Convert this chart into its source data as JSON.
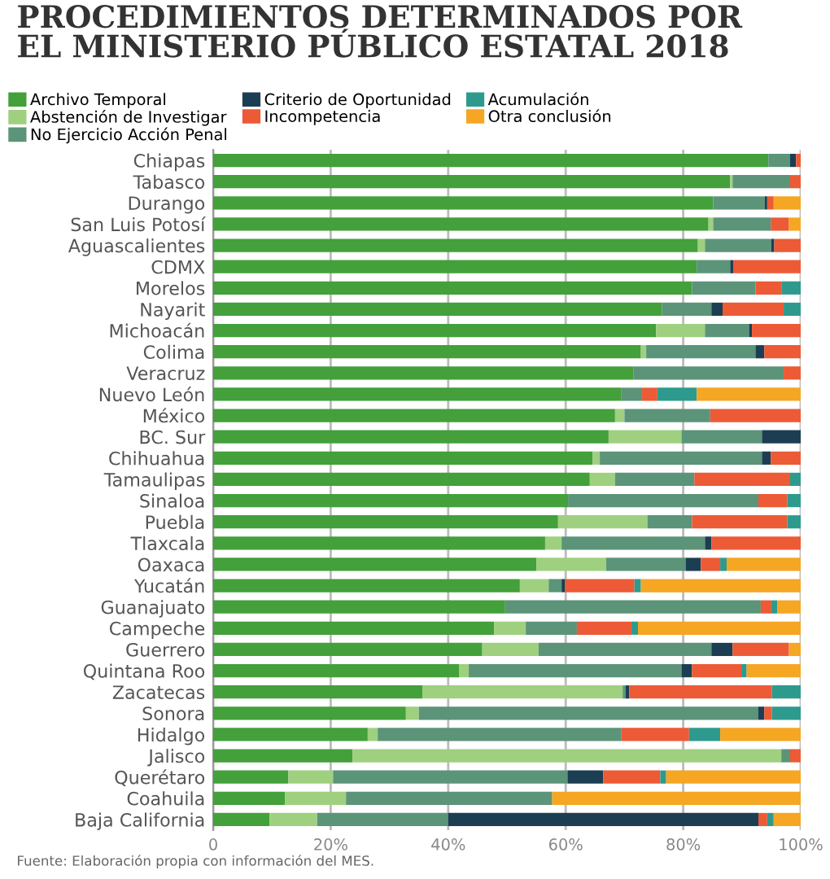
{
  "chart_data": {
    "type": "bar",
    "orientation": "horizontal",
    "stacked": true,
    "title": "PROCEDIMIENTOS DETERMINADOS POR\nEL MINISTERIO PÚBLICO ESTATAL 2018",
    "categories": [
      "Chiapas",
      "Tabasco",
      "Durango",
      "San Luis Potosí",
      "Aguascalientes",
      "CDMX",
      "Morelos",
      "Nayarit",
      "Michoacán",
      "Colima",
      "Veracruz",
      "Nuevo León",
      "México",
      "BC. Sur",
      "Chihuahua",
      "Tamaulipas",
      "Sinaloa",
      "Puebla",
      "Tlaxcala",
      "Oaxaca",
      "Yucatán",
      "Guanajuato",
      "Campeche",
      "Guerrero",
      "Quintana Roo",
      "Zacatecas",
      "Sonora",
      "Hidalgo",
      "Jalisco",
      "Querétaro",
      "Coahuila",
      "Baja California"
    ],
    "series": [
      {
        "name": "Archivo Temporal",
        "color": "#43a03a",
        "values": [
          94.5,
          88.0,
          85.1,
          84.3,
          82.5,
          82.3,
          81.5,
          76.4,
          75.4,
          72.8,
          71.5,
          69.5,
          68.4,
          67.3,
          64.6,
          64.1,
          60.4,
          58.7,
          56.5,
          55.0,
          52.2,
          49.7,
          47.8,
          45.8,
          41.9,
          35.6,
          32.8,
          26.3,
          23.7,
          12.8,
          12.2,
          9.6
        ]
      },
      {
        "name": "Abstención de Investigar",
        "color": "#9fd07f",
        "values": [
          0,
          0.4,
          0,
          0.8,
          1.2,
          0,
          0,
          0,
          8.3,
          0.9,
          0,
          0,
          1.6,
          12.4,
          1.2,
          4.3,
          0,
          15.2,
          2.8,
          11.9,
          4.9,
          0,
          5.4,
          9.6,
          1.6,
          34.1,
          2.2,
          1.7,
          73.0,
          7.6,
          10.4,
          8.1
        ]
      },
      {
        "name": "No Ejercicio Acción Penal",
        "color": "#5b9479",
        "values": [
          3.7,
          9.8,
          8.8,
          9.8,
          11.3,
          5.7,
          10.8,
          8.4,
          7.5,
          18.6,
          25.6,
          3.5,
          14.6,
          13.7,
          27.6,
          13.5,
          32.4,
          7.6,
          24.4,
          13.5,
          2.2,
          43.5,
          8.7,
          29.4,
          36.2,
          0.5,
          57.8,
          41.5,
          1.5,
          39.9,
          35.1,
          22.3
        ]
      },
      {
        "name": "Criterio de Oportunidad",
        "color": "#1c3e52",
        "values": [
          1.0,
          0,
          0.4,
          0,
          0.5,
          0.5,
          0,
          1.9,
          0.5,
          1.5,
          0,
          0,
          0,
          6.6,
          1.5,
          0,
          0,
          0,
          1.1,
          2.6,
          0.6,
          0,
          0,
          3.6,
          1.8,
          0.6,
          1.0,
          0,
          0,
          6.1,
          0,
          52.8
        ]
      },
      {
        "name": "Incompetencia",
        "color": "#ec5a36",
        "values": [
          0.8,
          1.8,
          1.1,
          3.1,
          4.5,
          11.5,
          4.4,
          10.4,
          8.3,
          6.2,
          2.9,
          2.6,
          15.4,
          0,
          5.1,
          16.3,
          4.9,
          16.2,
          15.2,
          3.3,
          11.8,
          1.8,
          9.3,
          9.6,
          8.4,
          24.3,
          1.3,
          11.5,
          1.8,
          9.7,
          0,
          1.5
        ]
      },
      {
        "name": "Acumulación",
        "color": "#2e9a8d",
        "values": [
          0,
          0,
          0,
          0,
          0,
          0,
          3.3,
          2.9,
          0,
          0,
          0,
          6.7,
          0,
          0,
          0,
          1.8,
          2.3,
          2.3,
          0,
          1.1,
          1.1,
          1.0,
          1.1,
          0,
          0.9,
          4.9,
          4.9,
          5.3,
          0,
          1.0,
          0,
          1.1
        ]
      },
      {
        "name": "Otra conclusión",
        "color": "#f5a623",
        "values": [
          0,
          0,
          4.6,
          2.0,
          0,
          0,
          0,
          0,
          0,
          0,
          0,
          17.7,
          0,
          0,
          0,
          0,
          0,
          0,
          0,
          12.6,
          27.2,
          4.0,
          27.7,
          2.0,
          9.2,
          0,
          0,
          13.7,
          0,
          22.9,
          42.3,
          4.6
        ]
      }
    ],
    "xlim": [
      0,
      100
    ],
    "xticks": [
      {
        "value": 0,
        "label": "0"
      },
      {
        "value": 20,
        "label": "20%"
      },
      {
        "value": 40,
        "label": "40%"
      },
      {
        "value": 60,
        "label": "60%"
      },
      {
        "value": 80,
        "label": "80%"
      },
      {
        "value": 100,
        "label": "100%"
      }
    ],
    "grid": "x",
    "legend": "top",
    "annotations": [
      "Fuente: Elaboración propia con información del MES."
    ]
  }
}
